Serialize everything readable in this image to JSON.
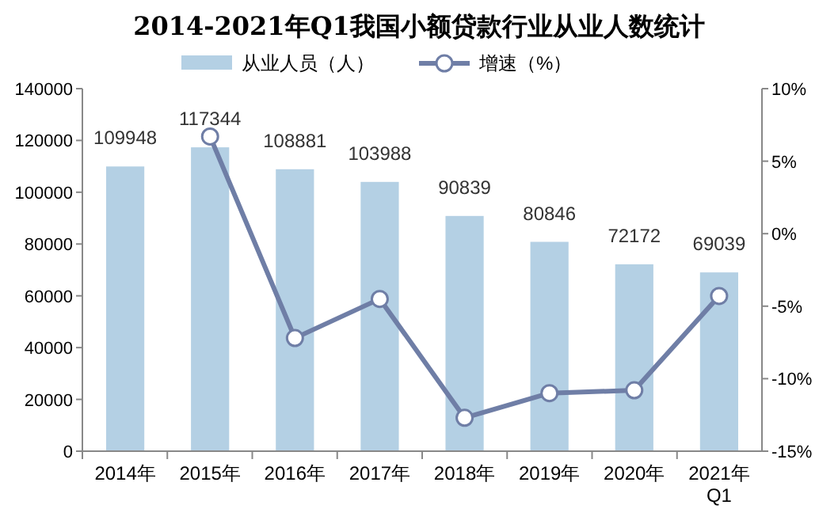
{
  "chart_data": {
    "type": "bar",
    "title": "2014-2021年Q1我国小额贷款行业从业人数统计",
    "categories": [
      "2014年",
      "2015年",
      "2016年",
      "2017年",
      "2018年",
      "2019年",
      "2020年",
      "2021年\nQ1"
    ],
    "series": [
      {
        "name": "从业人员（人）",
        "color": "#b4d0e4",
        "values": [
          109948,
          117344,
          108881,
          103988,
          90839,
          80846,
          72172,
          69039
        ],
        "value_labels": [
          "109948",
          "117344",
          "108881",
          "103988",
          "90839",
          "80846",
          "72172",
          "69039"
        ]
      },
      {
        "name": "增速（%）",
        "type": "line",
        "axis": "y2",
        "color": "#6f7ea6",
        "marker": "circle",
        "values": [
          null,
          6.7,
          -7.2,
          -4.5,
          -12.7,
          -11.0,
          -10.8,
          -4.3
        ]
      }
    ],
    "ylim": [
      0,
      140000
    ],
    "yticks": [
      0,
      20000,
      40000,
      60000,
      80000,
      100000,
      120000,
      140000
    ],
    "y2lim": [
      -15,
      10
    ],
    "y2ticks": [
      {
        "value": -15,
        "label": "-15%"
      },
      {
        "value": -10,
        "label": "-10%"
      },
      {
        "value": -5,
        "label": "-5%"
      },
      {
        "value": 0,
        "label": "0%"
      },
      {
        "value": 5,
        "label": "5%"
      },
      {
        "value": 10,
        "label": "10%"
      }
    ],
    "grid": false,
    "legend": "top"
  }
}
